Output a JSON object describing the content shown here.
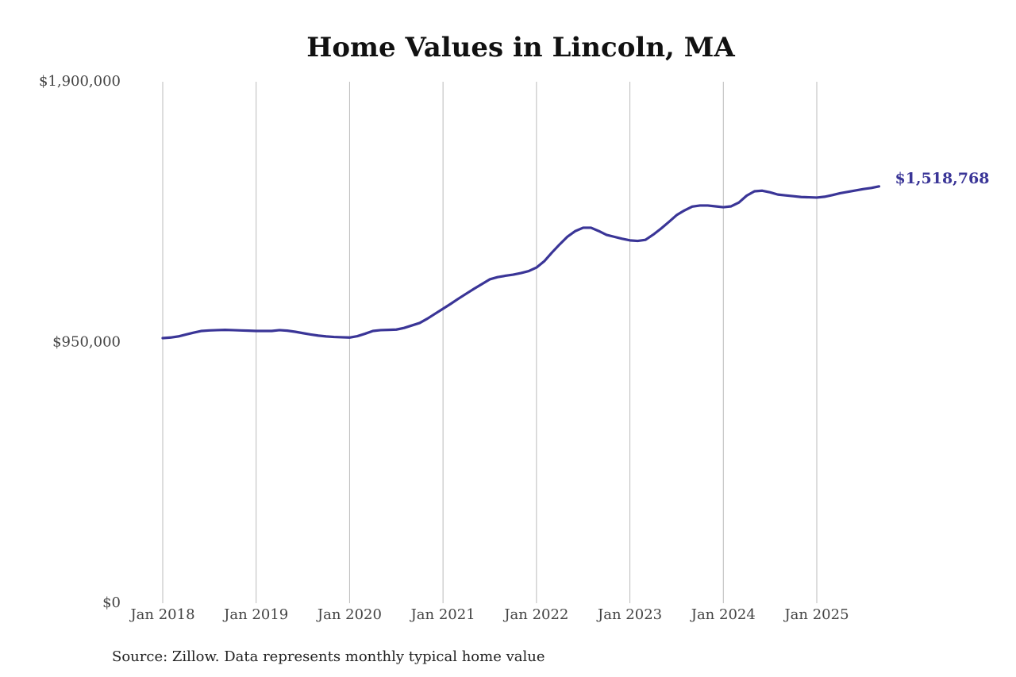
{
  "chart_data": {
    "type": "line",
    "title": "Home Values in Lincoln, MA",
    "source": "Source: Zillow. Data represents monthly typical home value",
    "x": [
      "2018-01",
      "2018-02",
      "2018-03",
      "2018-04",
      "2018-05",
      "2018-06",
      "2018-07",
      "2018-08",
      "2018-09",
      "2018-10",
      "2018-11",
      "2018-12",
      "2019-01",
      "2019-02",
      "2019-03",
      "2019-04",
      "2019-05",
      "2019-06",
      "2019-07",
      "2019-08",
      "2019-09",
      "2019-10",
      "2019-11",
      "2019-12",
      "2020-01",
      "2020-02",
      "2020-03",
      "2020-04",
      "2020-05",
      "2020-06",
      "2020-07",
      "2020-08",
      "2020-09",
      "2020-10",
      "2020-11",
      "2020-12",
      "2021-01",
      "2021-02",
      "2021-03",
      "2021-04",
      "2021-05",
      "2021-06",
      "2021-07",
      "2021-08",
      "2021-09",
      "2021-10",
      "2021-11",
      "2021-12",
      "2022-01",
      "2022-02",
      "2022-03",
      "2022-04",
      "2022-05",
      "2022-06",
      "2022-07",
      "2022-08",
      "2022-09",
      "2022-10",
      "2022-11",
      "2022-12",
      "2023-01",
      "2023-02",
      "2023-03",
      "2023-04",
      "2023-05",
      "2023-06",
      "2023-07",
      "2023-08",
      "2023-09",
      "2023-10",
      "2023-11",
      "2023-12",
      "2024-01",
      "2024-02",
      "2024-03",
      "2024-04",
      "2024-05",
      "2024-06",
      "2024-07",
      "2024-08",
      "2024-09",
      "2024-10",
      "2024-11",
      "2024-12",
      "2025-01",
      "2025-02",
      "2025-03",
      "2025-04",
      "2025-05",
      "2025-06",
      "2025-07",
      "2025-08",
      "2025-09"
    ],
    "series": [
      {
        "color": "#3a3597",
        "values": [
          966000,
          968000,
          972000,
          979000,
          986000,
          992000,
          994000,
          995000,
          996000,
          995000,
          994000,
          993000,
          992000,
          992000,
          992000,
          995000,
          993000,
          989000,
          984000,
          979000,
          975000,
          972000,
          970000,
          969000,
          968000,
          973000,
          982000,
          992000,
          995000,
          996000,
          997000,
          1003000,
          1012000,
          1021000,
          1037000,
          1055000,
          1073000,
          1091000,
          1110000,
          1128000,
          1146000,
          1163000,
          1180000,
          1188000,
          1193000,
          1197000,
          1203000,
          1210000,
          1223000,
          1246000,
          1278000,
          1308000,
          1336000,
          1356000,
          1368000,
          1368000,
          1356000,
          1342000,
          1335000,
          1328000,
          1322000,
          1320000,
          1324000,
          1343000,
          1365000,
          1389000,
          1414000,
          1431000,
          1445000,
          1449000,
          1449000,
          1446000,
          1443000,
          1446000,
          1460000,
          1485000,
          1501000,
          1503000,
          1497000,
          1489000,
          1486000,
          1483000,
          1480000,
          1479000,
          1478000,
          1481000,
          1487000,
          1494000,
          1499000,
          1504000,
          1509000,
          1513000,
          1518768
        ],
        "value_labels": [
          null,
          null,
          null,
          null,
          null,
          null,
          null,
          null,
          null,
          null,
          null,
          null,
          null,
          null,
          null,
          null,
          null,
          null,
          null,
          null,
          null,
          null,
          null,
          null,
          null,
          null,
          null,
          null,
          null,
          null,
          null,
          null,
          null,
          null,
          null,
          null,
          null,
          null,
          null,
          null,
          null,
          null,
          null,
          null,
          null,
          null,
          null,
          null,
          null,
          null,
          null,
          null,
          null,
          null,
          null,
          null,
          null,
          null,
          null,
          null,
          null,
          null,
          null,
          null,
          null,
          null,
          null,
          null,
          null,
          null,
          null,
          null,
          null,
          null,
          null,
          null,
          null,
          null,
          null,
          null,
          null,
          null,
          null,
          null,
          null,
          null,
          null,
          null,
          null,
          null,
          null,
          null,
          "$1,518,768"
        ]
      }
    ],
    "xlim": [
      "2018-01",
      "2025-09"
    ],
    "xticks": [
      {
        "value": "2018-01",
        "label": "Jan 2018"
      },
      {
        "value": "2019-01",
        "label": "Jan 2019"
      },
      {
        "value": "2020-01",
        "label": "Jan 2020"
      },
      {
        "value": "2021-01",
        "label": "Jan 2021"
      },
      {
        "value": "2022-01",
        "label": "Jan 2022"
      },
      {
        "value": "2023-01",
        "label": "Jan 2023"
      },
      {
        "value": "2024-01",
        "label": "Jan 2024"
      },
      {
        "value": "2025-01",
        "label": "Jan 2025"
      }
    ],
    "ylim": [
      0,
      1900000
    ],
    "yticks": [
      {
        "value": 0,
        "label": "$0"
      },
      {
        "value": 950000,
        "label": "$950,000"
      },
      {
        "value": 1900000,
        "label": "$1,900,000"
      }
    ],
    "grid": "x"
  }
}
